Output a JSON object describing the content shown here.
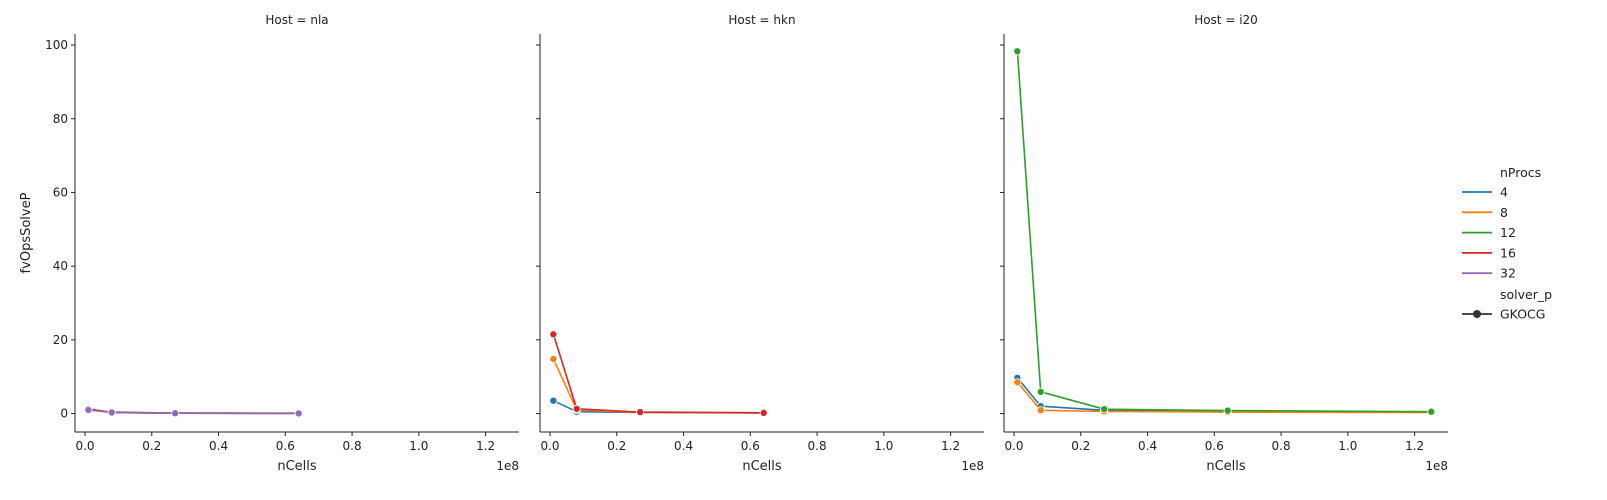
{
  "chart_data": {
    "type": "line",
    "facet_prefix": "Host = ",
    "xlabel": "nCells",
    "ylabel": "fvOpsSolveP",
    "x_exponent_label": "1e8",
    "x_scale": 100000000,
    "xlim": [
      -3000000,
      130000000
    ],
    "ylim": [
      -5,
      103
    ],
    "x_ticks": [
      0,
      20000000,
      40000000,
      60000000,
      80000000,
      100000000,
      120000000
    ],
    "x_tick_labels": [
      "0.0",
      "0.2",
      "0.4",
      "0.6",
      "0.8",
      "1.0",
      "1.2"
    ],
    "y_ticks": [
      0,
      20,
      40,
      60,
      80,
      100
    ],
    "y_tick_labels": [
      "0",
      "20",
      "40",
      "60",
      "80",
      "100"
    ],
    "grid": false,
    "legend": {
      "placement": "right",
      "hue_title": "nProcs",
      "style_title": "solver_p",
      "style_entries": [
        "GKOCG"
      ]
    },
    "series_styles": [
      {
        "name": "4",
        "color": "#1f77b4"
      },
      {
        "name": "8",
        "color": "#ff7f0e"
      },
      {
        "name": "12",
        "color": "#2ca02c"
      },
      {
        "name": "16",
        "color": "#d62728"
      },
      {
        "name": "32",
        "color": "#9467bd"
      }
    ],
    "facets": [
      {
        "host": "nla",
        "series": [
          {
            "name": "4",
            "x": [
              1000000,
              8000000,
              27000000,
              64000000
            ],
            "y": [
              1.0,
              0.4,
              0.15,
              0.1
            ]
          },
          {
            "name": "8",
            "x": [
              1000000,
              8000000,
              27000000,
              64000000
            ],
            "y": [
              1.1,
              0.3,
              0.12,
              0.1
            ]
          },
          {
            "name": "12",
            "x": [
              1000000,
              8000000,
              27000000,
              64000000
            ],
            "y": [
              1.2,
              0.3,
              0.1,
              0.08
            ]
          },
          {
            "name": "16",
            "x": [
              1000000,
              8000000,
              27000000,
              64000000
            ],
            "y": [
              1.3,
              0.3,
              0.1,
              0.08
            ]
          },
          {
            "name": "32",
            "x": [
              1000000,
              8000000,
              27000000,
              64000000
            ],
            "y": [
              1.0,
              0.3,
              0.1,
              0.05
            ]
          }
        ]
      },
      {
        "host": "hkn",
        "series": [
          {
            "name": "4",
            "x": [
              1000000,
              8000000,
              27000000,
              64000000
            ],
            "y": [
              3.5,
              0.5,
              0.3,
              0.15
            ]
          },
          {
            "name": "8",
            "x": [
              1000000,
              8000000,
              27000000,
              64000000
            ],
            "y": [
              14.8,
              1.0,
              0.35,
              0.2
            ]
          },
          {
            "name": "16",
            "x": [
              1000000,
              8000000,
              27000000,
              64000000
            ],
            "y": [
              21.5,
              1.3,
              0.4,
              0.2
            ]
          }
        ]
      },
      {
        "host": "i20",
        "series": [
          {
            "name": "4",
            "x": [
              1000000,
              8000000,
              27000000,
              64000000,
              125000000
            ],
            "y": [
              9.7,
              2.0,
              0.9,
              0.5,
              0.4
            ]
          },
          {
            "name": "8",
            "x": [
              1000000,
              8000000,
              27000000,
              64000000,
              125000000
            ],
            "y": [
              8.5,
              0.9,
              0.6,
              0.4,
              0.3
            ]
          },
          {
            "name": "12",
            "x": [
              1000000,
              8000000,
              27000000,
              64000000,
              125000000
            ],
            "y": [
              98.3,
              5.9,
              1.2,
              0.8,
              0.5
            ]
          }
        ]
      }
    ]
  }
}
